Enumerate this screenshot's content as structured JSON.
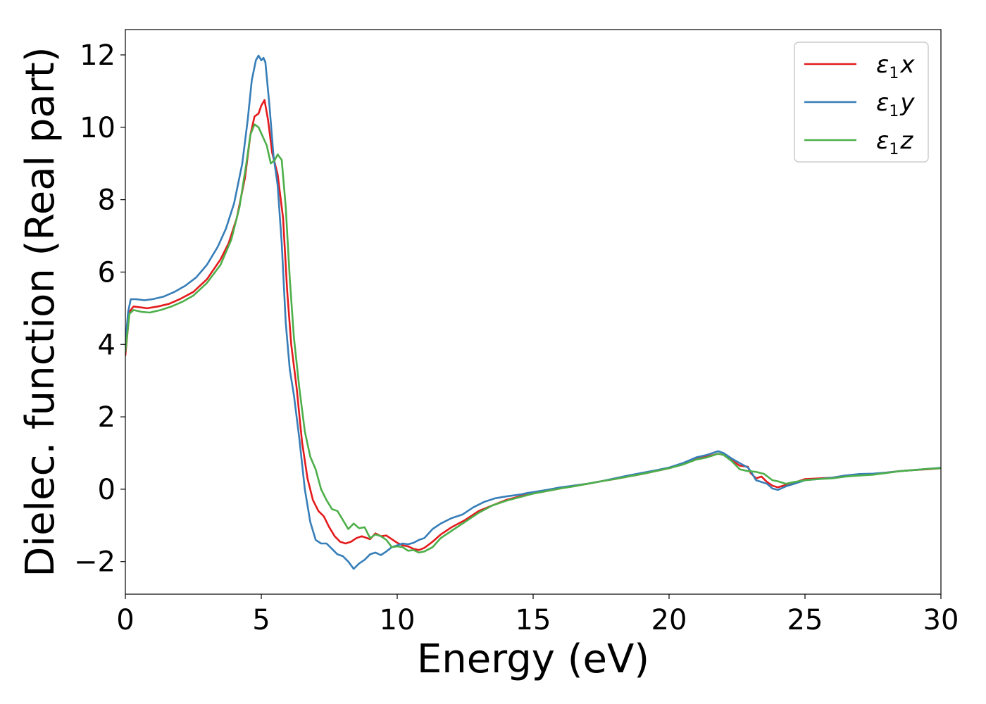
{
  "chart_data": {
    "type": "line",
    "title": "",
    "xlabel": "Energy (eV)",
    "ylabel": "Dielec. function (Real part)",
    "xlim": [
      0,
      30
    ],
    "ylim": [
      -2.9,
      12.7
    ],
    "xticks": [
      0,
      5,
      10,
      15,
      20,
      25,
      30
    ],
    "xtick_labels": [
      "0",
      "5",
      "10",
      "15",
      "20",
      "25",
      "30"
    ],
    "yticks": [
      -2,
      0,
      2,
      4,
      6,
      8,
      10,
      12
    ],
    "ytick_labels": [
      "−2",
      "0",
      "2",
      "4",
      "6",
      "8",
      "10",
      "12"
    ],
    "grid": false,
    "legend_position": "top-right",
    "series": [
      {
        "name": "ε1x",
        "symbol": "ε",
        "subscript": "1",
        "axis": "x",
        "color": "#e41a1c",
        "points": [
          [
            0,
            3.7
          ],
          [
            0.15,
            4.9
          ],
          [
            0.3,
            5.05
          ],
          [
            0.6,
            5.02
          ],
          [
            0.8,
            5.0
          ],
          [
            1.2,
            5.05
          ],
          [
            1.6,
            5.12
          ],
          [
            2.0,
            5.25
          ],
          [
            2.5,
            5.45
          ],
          [
            3.0,
            5.8
          ],
          [
            3.5,
            6.35
          ],
          [
            3.8,
            6.8
          ],
          [
            4.1,
            7.5
          ],
          [
            4.4,
            8.6
          ],
          [
            4.6,
            9.8
          ],
          [
            4.75,
            10.3
          ],
          [
            4.9,
            10.38
          ],
          [
            5.0,
            10.6
          ],
          [
            5.12,
            10.75
          ],
          [
            5.25,
            10.2
          ],
          [
            5.4,
            9.3
          ],
          [
            5.6,
            8.7
          ],
          [
            5.8,
            7.5
          ],
          [
            5.95,
            5.5
          ],
          [
            6.1,
            4.0
          ],
          [
            6.3,
            2.8
          ],
          [
            6.5,
            1.3
          ],
          [
            6.7,
            0.3
          ],
          [
            6.9,
            -0.3
          ],
          [
            7.1,
            -0.6
          ],
          [
            7.3,
            -0.75
          ],
          [
            7.5,
            -1.05
          ],
          [
            7.7,
            -1.3
          ],
          [
            7.9,
            -1.45
          ],
          [
            8.1,
            -1.5
          ],
          [
            8.3,
            -1.45
          ],
          [
            8.5,
            -1.35
          ],
          [
            8.7,
            -1.3
          ],
          [
            9.0,
            -1.38
          ],
          [
            9.2,
            -1.22
          ],
          [
            9.4,
            -1.3
          ],
          [
            9.6,
            -1.28
          ],
          [
            9.8,
            -1.38
          ],
          [
            10.0,
            -1.48
          ],
          [
            10.2,
            -1.55
          ],
          [
            10.4,
            -1.58
          ],
          [
            10.6,
            -1.65
          ],
          [
            10.8,
            -1.68
          ],
          [
            11.0,
            -1.62
          ],
          [
            11.3,
            -1.45
          ],
          [
            11.6,
            -1.25
          ],
          [
            12.0,
            -1.05
          ],
          [
            12.5,
            -0.85
          ],
          [
            13.0,
            -0.6
          ],
          [
            13.5,
            -0.45
          ],
          [
            14.0,
            -0.3
          ],
          [
            14.5,
            -0.2
          ],
          [
            15.0,
            -0.12
          ],
          [
            15.5,
            -0.05
          ],
          [
            16.0,
            0.02
          ],
          [
            16.5,
            0.1
          ],
          [
            17.0,
            0.15
          ],
          [
            17.5,
            0.22
          ],
          [
            18.0,
            0.28
          ],
          [
            18.5,
            0.35
          ],
          [
            19.0,
            0.42
          ],
          [
            19.5,
            0.5
          ],
          [
            20.0,
            0.58
          ],
          [
            20.5,
            0.7
          ],
          [
            21.0,
            0.85
          ],
          [
            21.4,
            0.9
          ],
          [
            21.8,
            0.98
          ],
          [
            22.0,
            0.95
          ],
          [
            22.3,
            0.8
          ],
          [
            22.6,
            0.65
          ],
          [
            22.9,
            0.62
          ],
          [
            23.0,
            0.45
          ],
          [
            23.2,
            0.3
          ],
          [
            23.4,
            0.35
          ],
          [
            23.6,
            0.2
          ],
          [
            23.8,
            0.1
          ],
          [
            24.0,
            0.05
          ],
          [
            24.3,
            0.12
          ],
          [
            24.6,
            0.18
          ],
          [
            25.0,
            0.28
          ],
          [
            25.5,
            0.3
          ],
          [
            26.0,
            0.32
          ],
          [
            26.5,
            0.38
          ],
          [
            27.0,
            0.4
          ],
          [
            27.5,
            0.42
          ],
          [
            28.0,
            0.46
          ],
          [
            28.5,
            0.5
          ],
          [
            29.0,
            0.53
          ],
          [
            29.5,
            0.55
          ],
          [
            30.0,
            0.58
          ]
        ]
      },
      {
        "name": "ε1y",
        "symbol": "ε",
        "subscript": "1",
        "axis": "y",
        "color": "#377eb8",
        "points": [
          [
            0,
            4.0
          ],
          [
            0.1,
            4.9
          ],
          [
            0.2,
            5.25
          ],
          [
            0.4,
            5.25
          ],
          [
            0.7,
            5.22
          ],
          [
            1.0,
            5.25
          ],
          [
            1.4,
            5.32
          ],
          [
            1.8,
            5.45
          ],
          [
            2.2,
            5.62
          ],
          [
            2.6,
            5.85
          ],
          [
            3.0,
            6.2
          ],
          [
            3.4,
            6.7
          ],
          [
            3.7,
            7.2
          ],
          [
            4.0,
            7.9
          ],
          [
            4.3,
            9.0
          ],
          [
            4.5,
            10.2
          ],
          [
            4.65,
            11.3
          ],
          [
            4.8,
            11.85
          ],
          [
            4.9,
            11.98
          ],
          [
            5.0,
            11.85
          ],
          [
            5.08,
            11.92
          ],
          [
            5.15,
            11.8
          ],
          [
            5.3,
            10.6
          ],
          [
            5.45,
            9.2
          ],
          [
            5.6,
            8.4
          ],
          [
            5.75,
            6.8
          ],
          [
            5.9,
            4.6
          ],
          [
            6.05,
            3.3
          ],
          [
            6.2,
            2.6
          ],
          [
            6.4,
            1.4
          ],
          [
            6.6,
            0.0
          ],
          [
            6.8,
            -0.9
          ],
          [
            7.0,
            -1.4
          ],
          [
            7.2,
            -1.5
          ],
          [
            7.4,
            -1.5
          ],
          [
            7.6,
            -1.65
          ],
          [
            7.8,
            -1.8
          ],
          [
            8.0,
            -1.85
          ],
          [
            8.2,
            -2.0
          ],
          [
            8.4,
            -2.2
          ],
          [
            8.6,
            -2.05
          ],
          [
            8.8,
            -1.95
          ],
          [
            9.0,
            -1.8
          ],
          [
            9.2,
            -1.75
          ],
          [
            9.4,
            -1.82
          ],
          [
            9.6,
            -1.72
          ],
          [
            9.8,
            -1.6
          ],
          [
            10.0,
            -1.55
          ],
          [
            10.2,
            -1.5
          ],
          [
            10.4,
            -1.52
          ],
          [
            10.6,
            -1.48
          ],
          [
            10.8,
            -1.4
          ],
          [
            11.0,
            -1.35
          ],
          [
            11.3,
            -1.1
          ],
          [
            11.6,
            -0.95
          ],
          [
            12.0,
            -0.8
          ],
          [
            12.4,
            -0.7
          ],
          [
            12.8,
            -0.5
          ],
          [
            13.2,
            -0.35
          ],
          [
            13.6,
            -0.25
          ],
          [
            14.0,
            -0.2
          ],
          [
            14.5,
            -0.15
          ],
          [
            14.8,
            -0.1
          ],
          [
            15.0,
            -0.08
          ],
          [
            15.5,
            -0.02
          ],
          [
            16.0,
            0.05
          ],
          [
            16.5,
            0.1
          ],
          [
            17.0,
            0.15
          ],
          [
            17.5,
            0.22
          ],
          [
            18.0,
            0.3
          ],
          [
            18.5,
            0.38
          ],
          [
            19.0,
            0.45
          ],
          [
            19.5,
            0.52
          ],
          [
            20.0,
            0.6
          ],
          [
            20.5,
            0.72
          ],
          [
            21.0,
            0.88
          ],
          [
            21.4,
            0.95
          ],
          [
            21.8,
            1.05
          ],
          [
            22.0,
            1.0
          ],
          [
            22.3,
            0.85
          ],
          [
            22.6,
            0.72
          ],
          [
            22.9,
            0.6
          ],
          [
            23.0,
            0.5
          ],
          [
            23.2,
            0.25
          ],
          [
            23.4,
            0.2
          ],
          [
            23.6,
            0.15
          ],
          [
            23.8,
            0.02
          ],
          [
            24.0,
            -0.02
          ],
          [
            24.3,
            0.08
          ],
          [
            24.6,
            0.15
          ],
          [
            25.0,
            0.25
          ],
          [
            25.5,
            0.28
          ],
          [
            26.0,
            0.32
          ],
          [
            26.5,
            0.38
          ],
          [
            27.0,
            0.42
          ],
          [
            27.5,
            0.43
          ],
          [
            28.0,
            0.46
          ],
          [
            28.5,
            0.5
          ],
          [
            29.0,
            0.53
          ],
          [
            29.5,
            0.56
          ],
          [
            30.0,
            0.59
          ]
        ]
      },
      {
        "name": "ε1z",
        "symbol": "ε",
        "subscript": "1",
        "axis": "z",
        "color": "#4daf4a",
        "points": [
          [
            0,
            3.8
          ],
          [
            0.15,
            4.85
          ],
          [
            0.3,
            4.95
          ],
          [
            0.6,
            4.9
          ],
          [
            0.9,
            4.88
          ],
          [
            1.3,
            4.95
          ],
          [
            1.7,
            5.05
          ],
          [
            2.1,
            5.18
          ],
          [
            2.5,
            5.35
          ],
          [
            3.0,
            5.7
          ],
          [
            3.5,
            6.2
          ],
          [
            3.9,
            6.9
          ],
          [
            4.2,
            7.8
          ],
          [
            4.45,
            9.0
          ],
          [
            4.6,
            9.8
          ],
          [
            4.75,
            10.08
          ],
          [
            4.9,
            10.0
          ],
          [
            5.05,
            9.75
          ],
          [
            5.2,
            9.5
          ],
          [
            5.35,
            9.0
          ],
          [
            5.5,
            9.1
          ],
          [
            5.6,
            9.25
          ],
          [
            5.75,
            9.1
          ],
          [
            5.9,
            7.8
          ],
          [
            6.05,
            5.8
          ],
          [
            6.2,
            4.2
          ],
          [
            6.4,
            2.8
          ],
          [
            6.6,
            1.6
          ],
          [
            6.8,
            0.9
          ],
          [
            7.0,
            0.55
          ],
          [
            7.2,
            0.0
          ],
          [
            7.4,
            -0.3
          ],
          [
            7.6,
            -0.55
          ],
          [
            7.8,
            -0.6
          ],
          [
            8.0,
            -0.85
          ],
          [
            8.2,
            -1.1
          ],
          [
            8.4,
            -0.95
          ],
          [
            8.6,
            -1.08
          ],
          [
            8.8,
            -1.05
          ],
          [
            9.0,
            -1.35
          ],
          [
            9.2,
            -1.25
          ],
          [
            9.4,
            -1.3
          ],
          [
            9.6,
            -1.4
          ],
          [
            9.8,
            -1.6
          ],
          [
            10.0,
            -1.58
          ],
          [
            10.2,
            -1.6
          ],
          [
            10.4,
            -1.7
          ],
          [
            10.6,
            -1.68
          ],
          [
            10.8,
            -1.75
          ],
          [
            11.0,
            -1.72
          ],
          [
            11.3,
            -1.6
          ],
          [
            11.6,
            -1.35
          ],
          [
            12.0,
            -1.15
          ],
          [
            12.5,
            -0.9
          ],
          [
            13.0,
            -0.65
          ],
          [
            13.5,
            -0.45
          ],
          [
            14.0,
            -0.32
          ],
          [
            14.5,
            -0.22
          ],
          [
            15.0,
            -0.12
          ],
          [
            15.5,
            -0.05
          ],
          [
            16.0,
            0.02
          ],
          [
            16.5,
            0.08
          ],
          [
            17.0,
            0.15
          ],
          [
            17.5,
            0.22
          ],
          [
            18.0,
            0.28
          ],
          [
            18.5,
            0.35
          ],
          [
            19.0,
            0.42
          ],
          [
            19.5,
            0.5
          ],
          [
            20.0,
            0.58
          ],
          [
            20.5,
            0.68
          ],
          [
            21.0,
            0.82
          ],
          [
            21.4,
            0.88
          ],
          [
            21.8,
            0.98
          ],
          [
            22.0,
            0.95
          ],
          [
            22.3,
            0.78
          ],
          [
            22.6,
            0.55
          ],
          [
            22.9,
            0.5
          ],
          [
            23.2,
            0.48
          ],
          [
            23.5,
            0.42
          ],
          [
            23.8,
            0.25
          ],
          [
            24.0,
            0.22
          ],
          [
            24.3,
            0.15
          ],
          [
            24.6,
            0.2
          ],
          [
            25.0,
            0.25
          ],
          [
            25.5,
            0.28
          ],
          [
            26.0,
            0.3
          ],
          [
            26.5,
            0.35
          ],
          [
            27.0,
            0.38
          ],
          [
            27.5,
            0.4
          ],
          [
            28.0,
            0.45
          ],
          [
            28.5,
            0.5
          ],
          [
            29.0,
            0.53
          ],
          [
            29.5,
            0.56
          ],
          [
            30.0,
            0.58
          ]
        ]
      }
    ]
  }
}
